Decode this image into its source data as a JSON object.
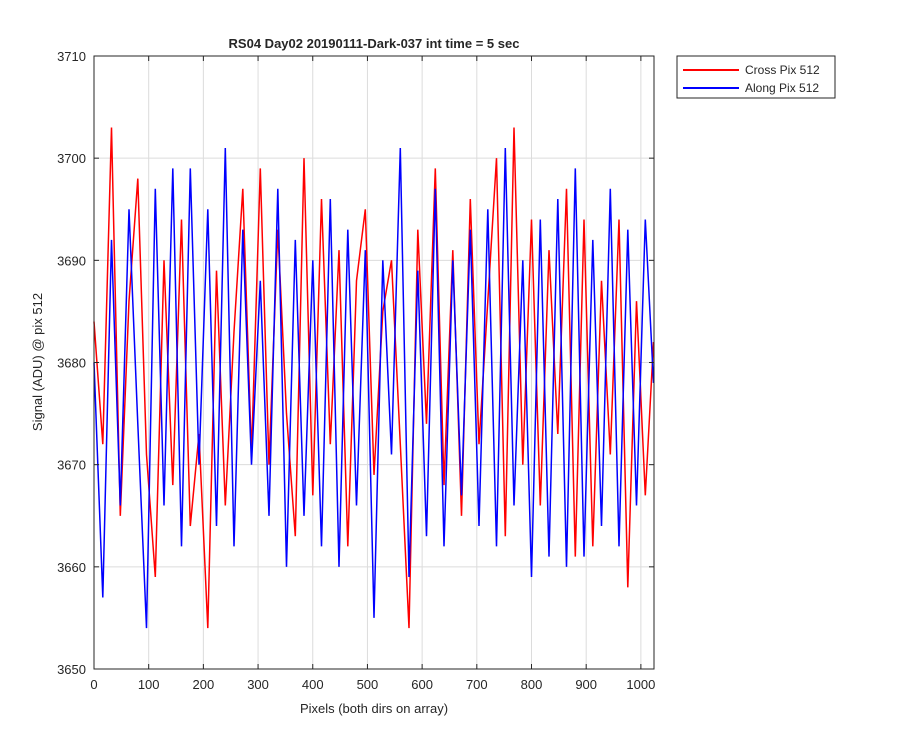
{
  "chart_data": {
    "type": "line",
    "title": "RS04 Day02 20190111-Dark-037 int time = 5 sec",
    "xlabel": "Pixels (both dirs on array)",
    "ylabel": "Signal (ADU) @ pix 512",
    "xlim": [
      0,
      1024
    ],
    "ylim": [
      3650,
      3710
    ],
    "xticks": [
      0,
      100,
      200,
      300,
      400,
      500,
      600,
      700,
      800,
      900,
      1000
    ],
    "yticks": [
      3650,
      3660,
      3670,
      3680,
      3690,
      3700,
      3710
    ],
    "grid": true,
    "legend_position": "outside-top-right",
    "series": [
      {
        "name": "Cross Pix 512",
        "color": "#ff0000",
        "x": [
          0,
          16,
          32,
          48,
          64,
          80,
          96,
          112,
          128,
          144,
          160,
          176,
          192,
          208,
          224,
          240,
          256,
          272,
          288,
          304,
          320,
          336,
          352,
          368,
          384,
          400,
          416,
          432,
          448,
          464,
          480,
          496,
          512,
          528,
          544,
          560,
          576,
          592,
          608,
          624,
          640,
          656,
          672,
          688,
          704,
          720,
          736,
          752,
          768,
          784,
          800,
          816,
          832,
          848,
          864,
          880,
          896,
          912,
          928,
          944,
          960,
          976,
          992,
          1008,
          1023
        ],
        "y": [
          3684,
          3672,
          3703,
          3665,
          3686,
          3698,
          3671,
          3659,
          3690,
          3668,
          3694,
          3664,
          3673,
          3654,
          3689,
          3666,
          3683,
          3697,
          3671,
          3699,
          3670,
          3693,
          3675,
          3663,
          3700,
          3667,
          3696,
          3672,
          3691,
          3662,
          3688,
          3695,
          3669,
          3685,
          3690,
          3672,
          3654,
          3693,
          3674,
          3699,
          3668,
          3691,
          3665,
          3696,
          3672,
          3686,
          3700,
          3663,
          3703,
          3670,
          3694,
          3666,
          3691,
          3673,
          3697,
          3661,
          3694,
          3662,
          3688,
          3671,
          3694,
          3658,
          3686,
          3667,
          3682
        ]
      },
      {
        "name": "Along Pix 512",
        "color": "#0000ff",
        "x": [
          0,
          16,
          32,
          48,
          64,
          80,
          96,
          112,
          128,
          144,
          160,
          176,
          192,
          208,
          224,
          240,
          256,
          272,
          288,
          304,
          320,
          336,
          352,
          368,
          384,
          400,
          416,
          432,
          448,
          464,
          480,
          496,
          512,
          528,
          544,
          560,
          576,
          592,
          608,
          624,
          640,
          656,
          672,
          688,
          704,
          720,
          736,
          752,
          768,
          784,
          800,
          816,
          832,
          848,
          864,
          880,
          896,
          912,
          928,
          944,
          960,
          976,
          992,
          1008,
          1023
        ],
        "y": [
          3680,
          3657,
          3692,
          3666,
          3695,
          3674,
          3654,
          3697,
          3666,
          3699,
          3662,
          3699,
          3670,
          3695,
          3664,
          3701,
          3662,
          3693,
          3670,
          3688,
          3665,
          3697,
          3660,
          3692,
          3665,
          3690,
          3662,
          3696,
          3660,
          3693,
          3666,
          3691,
          3655,
          3690,
          3671,
          3701,
          3659,
          3689,
          3663,
          3697,
          3662,
          3690,
          3667,
          3693,
          3664,
          3695,
          3662,
          3701,
          3666,
          3690,
          3659,
          3694,
          3661,
          3696,
          3660,
          3699,
          3661,
          3692,
          3664,
          3697,
          3662,
          3693,
          3666,
          3694,
          3678
        ]
      }
    ]
  }
}
